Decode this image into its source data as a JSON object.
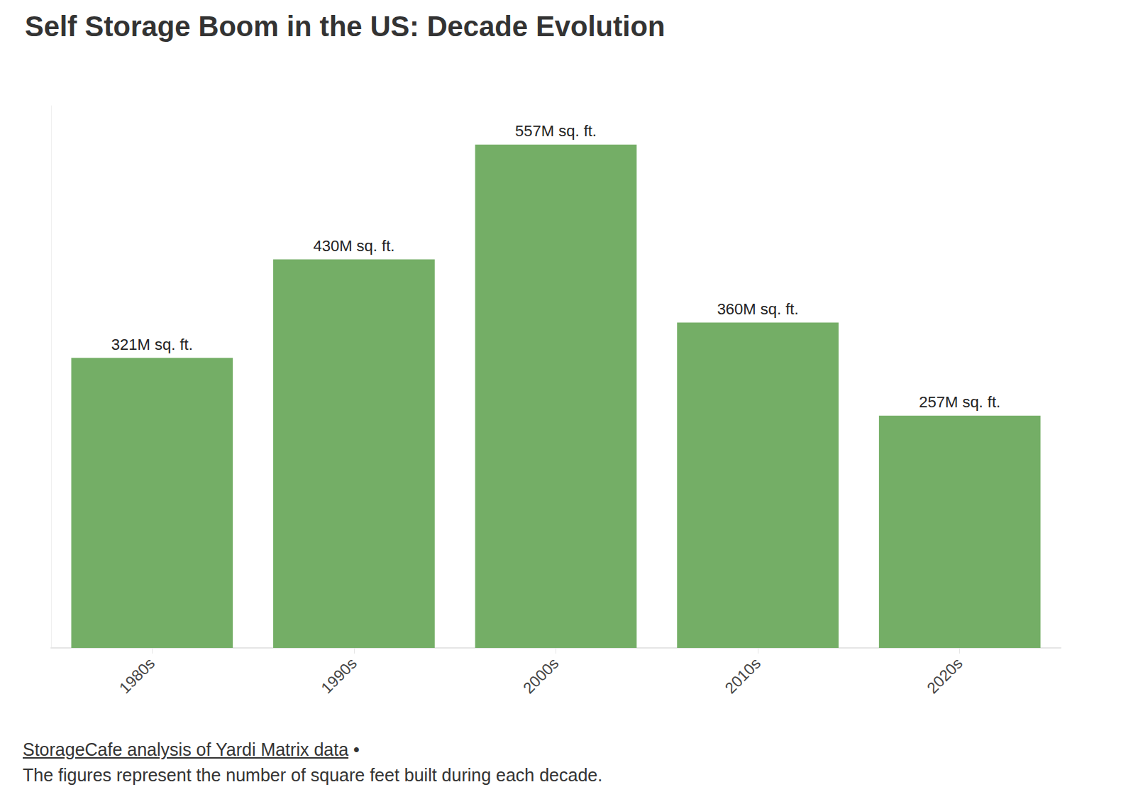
{
  "chart_data": {
    "type": "bar",
    "title": "Self Storage Boom in the US: Decade Evolution",
    "categories": [
      "1980s",
      "1990s",
      "2000s",
      "2010s",
      "2020s"
    ],
    "values": [
      321,
      430,
      557,
      360,
      257
    ],
    "value_labels": [
      "321M sq. ft.",
      "430M sq. ft.",
      "557M sq. ft.",
      "360M sq. ft.",
      "257M sq. ft."
    ],
    "color": "#74ae66",
    "ylim": [
      0,
      600
    ],
    "grid": false,
    "data_labels": true,
    "tick_labels": "x",
    "source": "StorageCafe analysis of Yardi Matrix data",
    "source_mark": "•",
    "note": "The figures represent the number of square feet built during each decade."
  }
}
